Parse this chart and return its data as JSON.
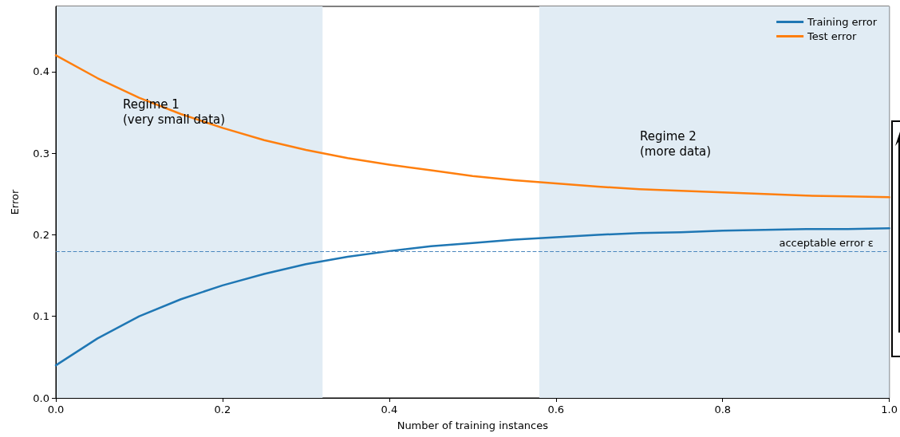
{
  "chart_data": {
    "type": "line",
    "xlabel": "Number of training instances",
    "ylabel": "Error",
    "x": [
      0,
      0.05,
      0.1,
      0.15,
      0.2,
      0.25,
      0.3,
      0.35,
      0.4,
      0.45,
      0.5,
      0.55,
      0.6,
      0.65,
      0.7,
      0.75,
      0.8,
      0.85,
      0.9,
      0.95,
      1.0
    ],
    "series": [
      {
        "name": "Training error",
        "color": "#1f77b4",
        "values": [
          0.04,
          0.073,
          0.1,
          0.121,
          0.138,
          0.152,
          0.164,
          0.173,
          0.18,
          0.186,
          0.19,
          0.194,
          0.197,
          0.2,
          0.202,
          0.203,
          0.205,
          0.206,
          0.207,
          0.207,
          0.208
        ]
      },
      {
        "name": "Test error",
        "color": "#ff7f0e",
        "values": [
          0.42,
          0.392,
          0.368,
          0.348,
          0.331,
          0.316,
          0.304,
          0.294,
          0.286,
          0.279,
          0.272,
          0.267,
          0.263,
          0.259,
          0.256,
          0.254,
          0.252,
          0.25,
          0.248,
          0.247,
          0.246
        ]
      }
    ],
    "xlim": [
      0,
      1.0
    ],
    "ylim": [
      0,
      0.48
    ],
    "xticks": [
      {
        "value": 0,
        "label": "0.0"
      },
      0.2,
      0.4,
      0.6,
      0.8,
      {
        "value": 1.0,
        "label": "1.0"
      }
    ],
    "yticks": [
      {
        "value": 0,
        "label": "0.0"
      },
      0.1,
      0.2,
      0.3,
      0.4
    ],
    "bands": [
      {
        "axis": "x",
        "from": 0,
        "to": 0.32,
        "color": "#e1ecf4"
      },
      {
        "axis": "x",
        "from": 0.58,
        "to": 1.0,
        "color": "#e1ecf4"
      }
    ],
    "ref_lines": [
      {
        "axis": "y",
        "value": 0.18,
        "label": "acceptable error ε",
        "color": "#4a86bd",
        "line_style": "dashed"
      }
    ],
    "annotations": [
      "Regime 1\n(very small data)",
      "Regime 2\n(more data)"
    ],
    "legend": "top right",
    "grid": false,
    "marker": "none",
    "line_style": "solid"
  }
}
